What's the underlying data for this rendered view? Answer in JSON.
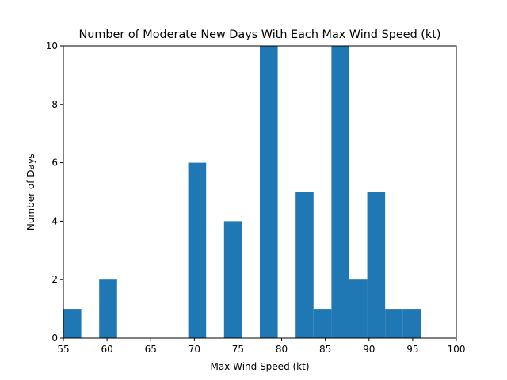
{
  "chart_data": {
    "type": "bar",
    "title": "Number of Moderate New Days With Each Max Wind Speed (kt)",
    "xlabel": "Max Wind Speed (kt)",
    "ylabel": "Number of Days",
    "xlim": [
      55,
      100
    ],
    "ylim": [
      0,
      10
    ],
    "xticks": [
      55,
      60,
      65,
      70,
      75,
      80,
      85,
      90,
      95,
      100
    ],
    "yticks": [
      0,
      2,
      4,
      6,
      8,
      10
    ],
    "grid": false,
    "bar_color": "#1f77b4",
    "bins": [
      {
        "x0": 55.0,
        "x1": 57.05,
        "count": 1
      },
      {
        "x0": 59.1,
        "x1": 61.15,
        "count": 2
      },
      {
        "x0": 69.3,
        "x1": 71.35,
        "count": 6
      },
      {
        "x0": 73.4,
        "x1": 75.45,
        "count": 4
      },
      {
        "x0": 77.5,
        "x1": 79.55,
        "count": 10
      },
      {
        "x0": 81.6,
        "x1": 83.65,
        "count": 5
      },
      {
        "x0": 83.65,
        "x1": 85.7,
        "count": 1
      },
      {
        "x0": 85.7,
        "x1": 87.75,
        "count": 10
      },
      {
        "x0": 87.75,
        "x1": 89.8,
        "count": 2
      },
      {
        "x0": 89.8,
        "x1": 91.85,
        "count": 5
      },
      {
        "x0": 91.85,
        "x1": 93.9,
        "count": 1
      },
      {
        "x0": 93.9,
        "x1": 95.95,
        "count": 1
      }
    ]
  }
}
